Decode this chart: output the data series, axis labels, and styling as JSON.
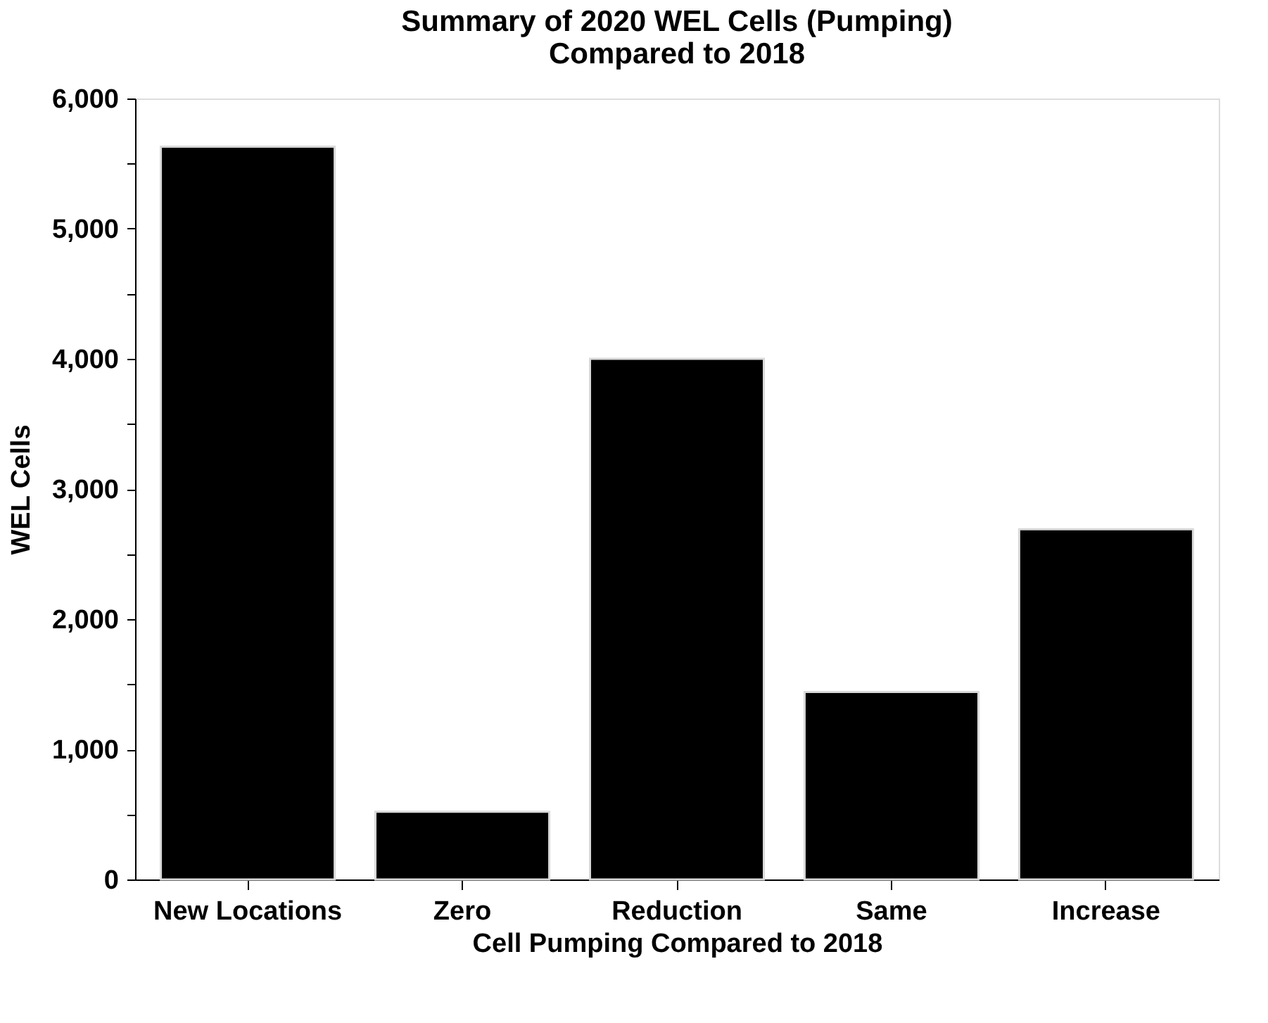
{
  "chart_data": {
    "type": "bar",
    "title": "Summary of 2020 WEL Cells (Pumping)\nCompared to 2018",
    "xlabel": "Cell Pumping Compared to 2018",
    "ylabel": "WEL Cells",
    "categories": [
      "New Locations",
      "Zero",
      "Reduction",
      "Same",
      "Increase"
    ],
    "values": [
      5630,
      520,
      4000,
      1440,
      2690
    ],
    "color": "#000000",
    "ylim": [
      0,
      6000
    ],
    "yticks": [
      {
        "value": 0,
        "label": "0"
      },
      {
        "value": 500,
        "label": null
      },
      {
        "value": 1000,
        "label": "1,000"
      },
      {
        "value": 1500,
        "label": null
      },
      {
        "value": 2000,
        "label": "2,000"
      },
      {
        "value": 2500,
        "label": null
      },
      {
        "value": 3000,
        "label": "3,000"
      },
      {
        "value": 3500,
        "label": null
      },
      {
        "value": 4000,
        "label": "4,000"
      },
      {
        "value": 4500,
        "label": null
      },
      {
        "value": 5000,
        "label": "5,000"
      },
      {
        "value": 5500,
        "label": null
      },
      {
        "value": 6000,
        "label": "6,000"
      }
    ],
    "grid": false
  }
}
